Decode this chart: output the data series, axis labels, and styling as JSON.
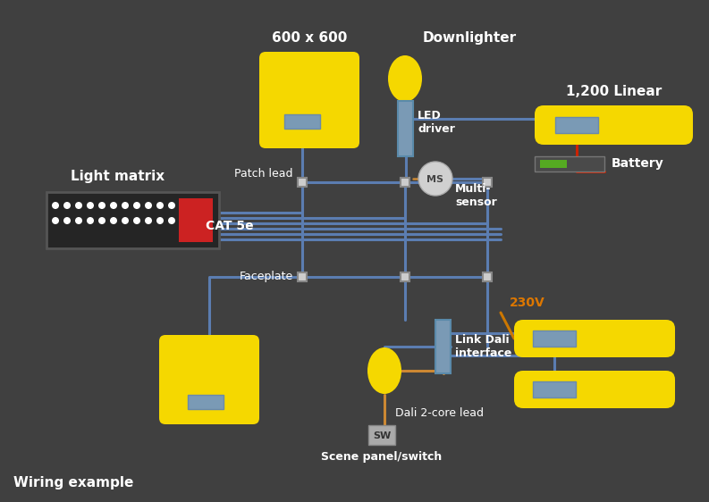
{
  "bg_color": "#404040",
  "text_color": "#ffffff",
  "yellow": "#f5d800",
  "blue_wire": "#5b7db1",
  "connector_bg": "#7a9ab5",
  "orange_wire": "#cc7700",
  "red_wire": "#cc2200",
  "green_bar": "#55aa22",
  "ms_circle_bg": "#d0d0d0",
  "ms_circle_text": "#444444",
  "sw_box_bg": "#aaaaaa",
  "sw_box_text": "#333333",
  "title": "Wiring example",
  "label_600": "600 x 600",
  "label_downlighter": "Downlighter",
  "label_1200": "1,200 Linear",
  "label_light_matrix": "Light matrix",
  "label_patch": "Patch lead",
  "label_cat5e": "CAT 5e",
  "label_led": "LED\ndriver",
  "label_multi": "Multi-\nsensor",
  "label_battery": "Battery",
  "label_faceplate": "Faceplate",
  "label_link_dali": "Link Dali\ninterface",
  "label_230v": "230V",
  "label_dali": "Dali 2-core lead",
  "label_scene": "Scene panel/switch"
}
